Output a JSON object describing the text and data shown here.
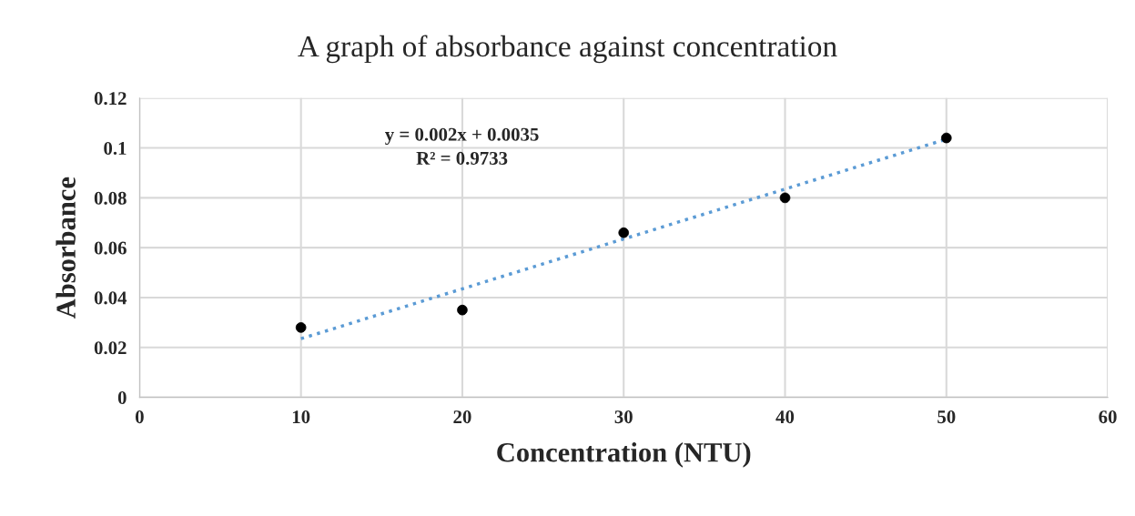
{
  "chart_data": {
    "type": "scatter",
    "title": "A graph of absorbance against concentration",
    "xlabel": "Concentration (NTU)",
    "ylabel": "Absorbance",
    "series": [
      {
        "color": "#000000",
        "x": [
          10,
          20,
          30,
          40,
          50
        ],
        "values": [
          0.028,
          0.035,
          0.066,
          0.08,
          0.104
        ],
        "marker": "circle"
      },
      {
        "type": "line",
        "color": "#5b9bd5",
        "x": [
          10,
          50
        ],
        "values": [
          0.0235,
          0.1035
        ],
        "line_style": "dotted",
        "marker": "none"
      }
    ],
    "annotations": [
      "y = 0.002x + 0.0035\nR² = 0.9733"
    ],
    "xlim": [
      0,
      60
    ],
    "xticks": [
      0,
      10,
      20,
      30,
      40,
      50,
      60
    ],
    "ylim": [
      0,
      0.12
    ],
    "yticks": [
      0,
      0.02,
      0.04,
      0.06,
      0.08,
      0.1,
      0.12
    ],
    "grid": true,
    "legend": false
  }
}
